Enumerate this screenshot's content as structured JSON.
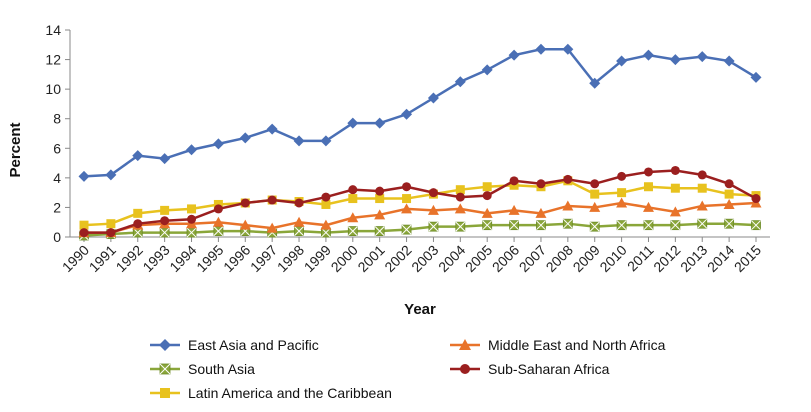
{
  "chart_data": {
    "type": "line",
    "xlabel": "Year",
    "ylabel": "Percent",
    "ylim": [
      0,
      14
    ],
    "yticks": [
      0,
      2,
      4,
      6,
      8,
      10,
      12,
      14
    ],
    "grid": false,
    "legend_placement": "bottom",
    "x": [
      "1990",
      "1991",
      "1992",
      "1993",
      "1994",
      "1995",
      "1996",
      "1997",
      "1998",
      "1999",
      "2000",
      "2001",
      "2002",
      "2003",
      "2004",
      "2005",
      "2006",
      "2007",
      "2008",
      "2009",
      "2010",
      "2011",
      "2012",
      "2013",
      "2014",
      "2015"
    ],
    "series": [
      {
        "name": "East Asia and Pacific",
        "color": "#4a6fb5",
        "marker": "diamond",
        "values": [
          4.1,
          4.2,
          5.5,
          5.3,
          5.9,
          6.3,
          6.7,
          7.3,
          6.5,
          6.5,
          7.7,
          7.7,
          8.3,
          9.4,
          10.5,
          11.3,
          12.3,
          12.7,
          12.7,
          10.4,
          11.9,
          12.3,
          12.0,
          12.2,
          11.9,
          10.8
        ]
      },
      {
        "name": "Middle East and North Africa",
        "color": "#e8732a",
        "marker": "triangle",
        "values": [
          0.3,
          0.3,
          0.8,
          0.9,
          0.9,
          1.0,
          0.8,
          0.6,
          1.0,
          0.8,
          1.3,
          1.5,
          1.9,
          1.8,
          1.9,
          1.6,
          1.8,
          1.6,
          2.1,
          2.0,
          2.3,
          2.0,
          1.7,
          2.1,
          2.2,
          2.3
        ]
      },
      {
        "name": "South Asia",
        "color": "#8aa63a",
        "marker": "x-square",
        "values": [
          0.1,
          0.2,
          0.3,
          0.3,
          0.3,
          0.4,
          0.4,
          0.3,
          0.4,
          0.3,
          0.4,
          0.4,
          0.5,
          0.7,
          0.7,
          0.8,
          0.8,
          0.8,
          0.9,
          0.7,
          0.8,
          0.8,
          0.8,
          0.9,
          0.9,
          0.8
        ]
      },
      {
        "name": "Sub-Saharan Africa",
        "color": "#9b1f1f",
        "marker": "circle",
        "values": [
          0.3,
          0.3,
          0.9,
          1.1,
          1.2,
          1.9,
          2.3,
          2.5,
          2.3,
          2.7,
          3.2,
          3.1,
          3.4,
          3.0,
          2.7,
          2.8,
          3.8,
          3.6,
          3.9,
          3.6,
          4.1,
          4.4,
          4.5,
          4.2,
          3.6,
          2.6
        ]
      },
      {
        "name": "Latin America and the Caribbean",
        "color": "#e8c21e",
        "marker": "square",
        "values": [
          0.8,
          0.9,
          1.6,
          1.8,
          1.9,
          2.2,
          2.3,
          2.5,
          2.4,
          2.2,
          2.6,
          2.6,
          2.6,
          2.9,
          3.2,
          3.4,
          3.5,
          3.4,
          3.8,
          2.9,
          3.0,
          3.4,
          3.3,
          3.3,
          2.9,
          2.8
        ]
      }
    ],
    "legend_order": [
      0,
      1,
      2,
      3,
      4
    ]
  }
}
